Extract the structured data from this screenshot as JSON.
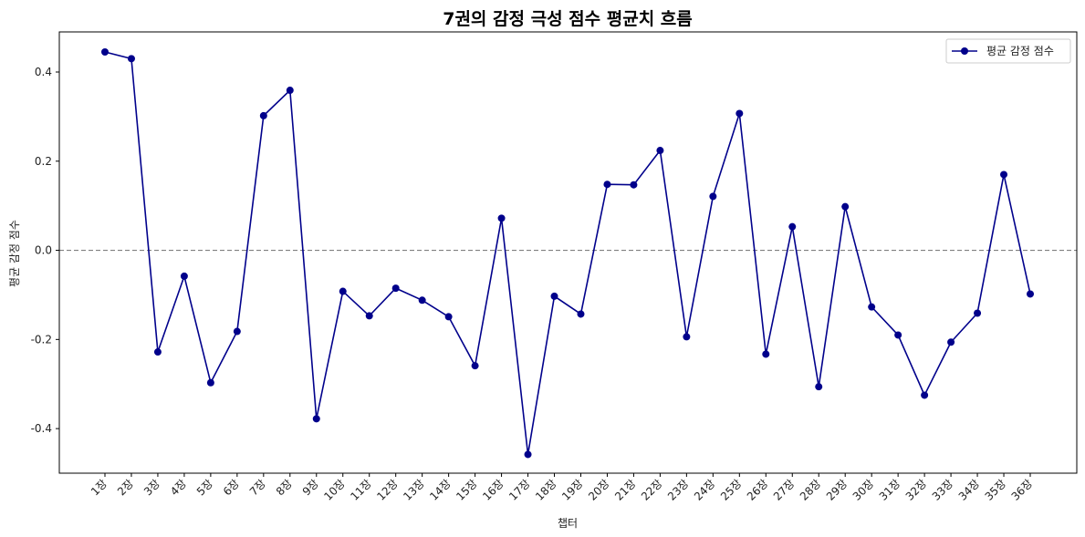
{
  "chart_data": {
    "type": "line",
    "title": "7권의 감정 극성 점수 평균치 흐름",
    "xlabel": "챕터",
    "ylabel": "평균 감정 점수",
    "categories": [
      "1장",
      "2장",
      "3장",
      "4장",
      "5장",
      "6장",
      "7장",
      "8장",
      "9장",
      "10장",
      "11장",
      "12장",
      "13장",
      "14장",
      "15장",
      "16장",
      "17장",
      "18장",
      "19장",
      "20장",
      "21장",
      "22장",
      "23장",
      "24장",
      "25장",
      "26장",
      "27장",
      "28장",
      "29장",
      "30장",
      "31장",
      "32장",
      "33장",
      "34장",
      "35장",
      "36장"
    ],
    "series": [
      {
        "name": "평균 감정 점수",
        "color": "#00008b",
        "values": [
          0.445,
          0.43,
          -0.228,
          -0.058,
          -0.297,
          -0.182,
          0.302,
          0.359,
          -0.378,
          -0.092,
          -0.147,
          -0.085,
          -0.112,
          -0.149,
          -0.259,
          0.072,
          -0.458,
          -0.103,
          -0.143,
          0.148,
          0.147,
          0.224,
          -0.194,
          0.121,
          0.307,
          -0.233,
          0.053,
          -0.306,
          0.098,
          -0.127,
          -0.19,
          -0.325,
          -0.206,
          -0.141,
          0.17,
          -0.098
        ]
      }
    ],
    "ylim": [
      -0.5,
      0.49
    ],
    "yticks": [
      -0.4,
      -0.2,
      0.0,
      0.2,
      0.4
    ],
    "ytick_labels": [
      "-0.4",
      "-0.2",
      "0.0",
      "0.2",
      "0.4"
    ],
    "reference_line": {
      "y": 0.0,
      "style": "dashed",
      "color": "#808080"
    },
    "grid": false,
    "legend": "top-right"
  }
}
